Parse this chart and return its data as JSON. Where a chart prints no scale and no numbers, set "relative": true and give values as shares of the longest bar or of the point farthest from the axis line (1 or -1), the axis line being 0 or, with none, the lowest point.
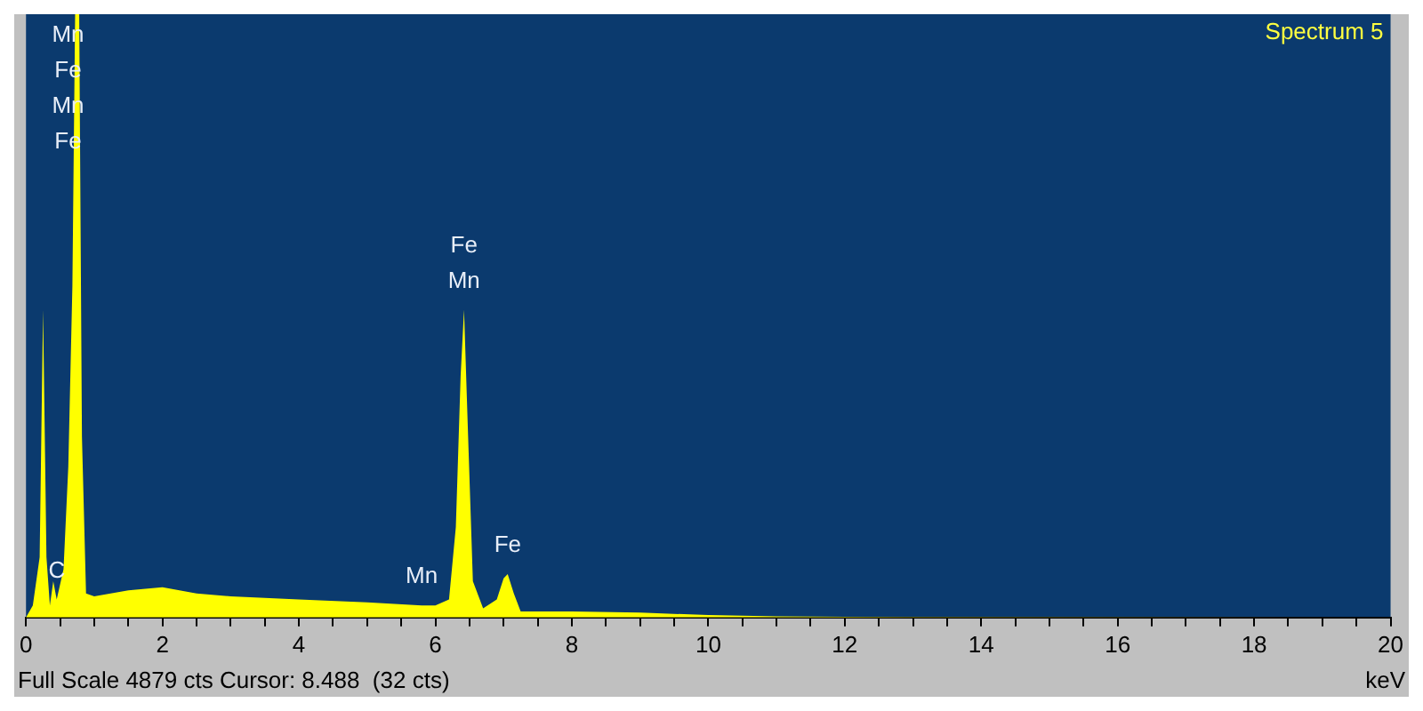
{
  "chart_data": {
    "type": "area",
    "title": "Spectrum 5",
    "xlabel": "keV",
    "relative": true,
    "color": "#ffff00",
    "x": [
      0,
      0.1,
      0.2,
      0.25,
      0.3,
      0.35,
      0.4,
      0.45,
      0.55,
      0.62,
      0.68,
      0.72,
      0.78,
      0.82,
      0.88,
      1.0,
      1.5,
      2.0,
      2.5,
      3.0,
      4.0,
      5.0,
      5.8,
      6.0,
      6.2,
      6.3,
      6.37,
      6.42,
      6.48,
      6.55,
      6.7,
      6.9,
      7.0,
      7.06,
      7.15,
      7.25,
      8,
      9,
      10,
      11,
      12,
      20
    ],
    "values": [
      0,
      0.02,
      0.1,
      0.51,
      0.1,
      0.02,
      0.06,
      0.03,
      0.08,
      0.25,
      0.55,
      1.0,
      1.0,
      0.3,
      0.04,
      0.035,
      0.045,
      0.05,
      0.04,
      0.035,
      0.03,
      0.025,
      0.02,
      0.02,
      0.03,
      0.15,
      0.4,
      0.51,
      0.3,
      0.06,
      0.015,
      0.03,
      0.065,
      0.072,
      0.04,
      0.01,
      0.01,
      0.008,
      0.004,
      0.002,
      0.001,
      0
    ],
    "xlim": [
      0,
      20
    ],
    "xticks": [
      0,
      {
        "value": 0.5,
        "label": null
      },
      {
        "value": 1,
        "label": null
      },
      {
        "value": 1.5,
        "label": null
      },
      2,
      {
        "value": 2.5,
        "label": null
      },
      {
        "value": 3,
        "label": null
      },
      {
        "value": 3.5,
        "label": null
      },
      4,
      {
        "value": 4.5,
        "label": null
      },
      {
        "value": 5,
        "label": null
      },
      {
        "value": 5.5,
        "label": null
      },
      6,
      {
        "value": 6.5,
        "label": null
      },
      {
        "value": 7,
        "label": null
      },
      {
        "value": 7.5,
        "label": null
      },
      8,
      {
        "value": 8.5,
        "label": null
      },
      {
        "value": 9,
        "label": null
      },
      {
        "value": 9.5,
        "label": null
      },
      10,
      {
        "value": 10.5,
        "label": null
      },
      {
        "value": 11,
        "label": null
      },
      {
        "value": 11.5,
        "label": null
      },
      12,
      {
        "value": 12.5,
        "label": null
      },
      {
        "value": 13,
        "label": null
      },
      {
        "value": 13.5,
        "label": null
      },
      14,
      {
        "value": 14.5,
        "label": null
      },
      {
        "value": 15,
        "label": null
      },
      {
        "value": 15.5,
        "label": null
      },
      16,
      {
        "value": 16.5,
        "label": null
      },
      {
        "value": 17,
        "label": null
      },
      {
        "value": 17.5,
        "label": null
      },
      18,
      {
        "value": 18.5,
        "label": null
      },
      {
        "value": 19,
        "label": null
      },
      {
        "value": 19.5,
        "label": null
      },
      20
    ],
    "annotations": [
      "Mn",
      "Fe",
      "Mn",
      "Fe",
      {
        "text": "C",
        "x": 0.45,
        "y": 0.03
      },
      {
        "text": "Fe",
        "x": 6.42,
        "y": 0.51
      },
      {
        "text": "Mn",
        "x": 6.42,
        "y": 0.51
      },
      {
        "text": "Mn",
        "x": 5.8,
        "y": 0.02
      },
      {
        "text": "Fe",
        "x": 7.06,
        "y": 0.072
      },
      "Full Scale 4879 cts Cursor: 8.488  (32 cts)"
    ]
  }
}
